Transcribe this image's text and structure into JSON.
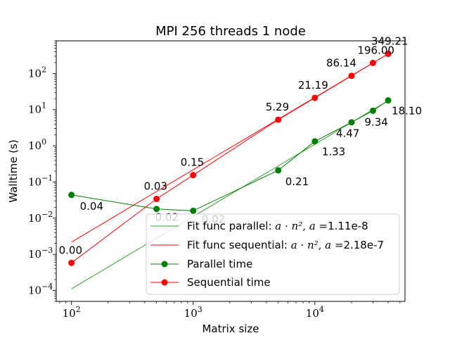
{
  "chart_data": {
    "type": "line",
    "title": "MPI 256 threads 1 node",
    "xlabel": "Matrix size",
    "ylabel": "Walltime (s)",
    "xscale": "log",
    "yscale": "log",
    "xlim": [
      75,
      55000
    ],
    "ylim": [
      5e-05,
      800
    ],
    "x_ticks": [
      {
        "value": 100,
        "base": "10",
        "exp": "2"
      },
      {
        "value": 1000,
        "base": "10",
        "exp": "3"
      },
      {
        "value": 10000,
        "base": "10",
        "exp": "4"
      }
    ],
    "y_ticks": [
      {
        "value": 0.0001,
        "base": "10",
        "exp": "−4"
      },
      {
        "value": 0.001,
        "base": "10",
        "exp": "−3"
      },
      {
        "value": 0.01,
        "base": "10",
        "exp": "−2"
      },
      {
        "value": 0.1,
        "base": "10",
        "exp": "−1"
      },
      {
        "value": 1,
        "base": "10",
        "exp": "0"
      },
      {
        "value": 10,
        "base": "10",
        "exp": "1"
      },
      {
        "value": 100,
        "base": "10",
        "exp": "2"
      }
    ],
    "series": [
      {
        "name": "Fit func parallel",
        "legend_prefix": "Fit func parallel: ",
        "legend_formula": "a · n², a =",
        "legend_value": "1.11e-8",
        "kind": "fit",
        "coef": 1.11e-08,
        "color": "#2ca02c",
        "x": [
          100,
          40000
        ]
      },
      {
        "name": "Fit func sequential",
        "legend_prefix": "Fit func sequential: ",
        "legend_formula": "a · n², a =",
        "legend_value": "2.18e-7",
        "kind": "fit",
        "coef": 2.18e-07,
        "color": "#ff0000",
        "x": [
          100,
          40000
        ]
      },
      {
        "name": "Parallel time",
        "kind": "data",
        "color": "#008000",
        "x": [
          100,
          500,
          1000,
          5000,
          10000,
          20000,
          30000,
          40000
        ],
        "y": [
          0.044,
          0.018,
          0.016,
          0.21,
          1.33,
          4.47,
          9.34,
          18.1
        ],
        "labels": [
          "0.04",
          "0.02",
          "0.02",
          "0.21",
          "1.33",
          "4.47",
          "9.34",
          "18.10"
        ]
      },
      {
        "name": "Sequential time",
        "kind": "data",
        "color": "#ff0000",
        "x": [
          100,
          500,
          1000,
          5000,
          10000,
          20000,
          30000,
          40000
        ],
        "y": [
          0.00058,
          0.034,
          0.155,
          5.29,
          21.19,
          86.14,
          196.0,
          349.21
        ],
        "labels": [
          "0.00",
          "0.03",
          "0.15",
          "5.29",
          "21.19",
          "86.14",
          "196.00",
          "349.21"
        ]
      }
    ],
    "legend_placement": "lower-right"
  }
}
